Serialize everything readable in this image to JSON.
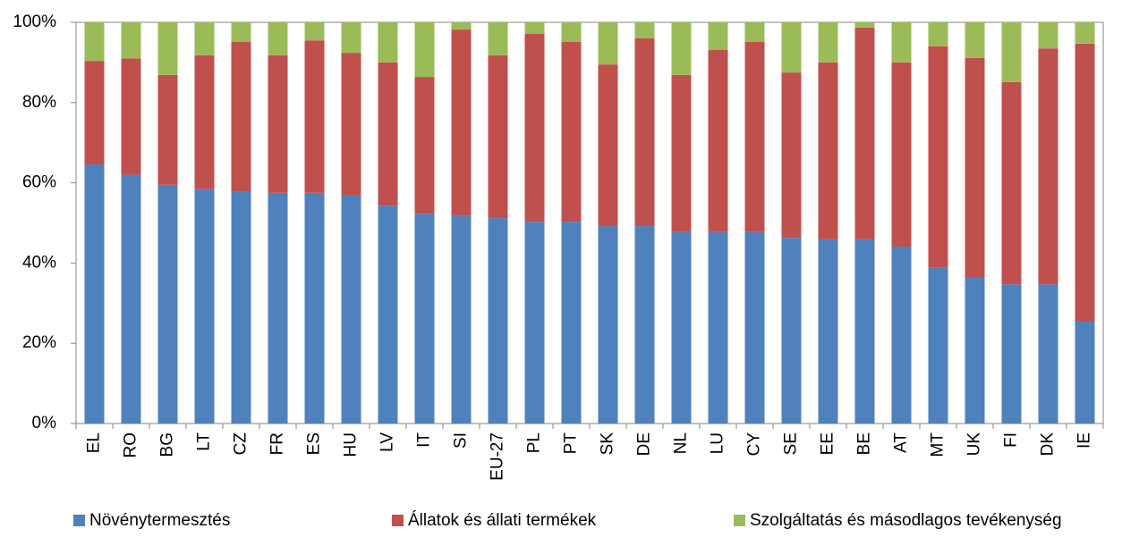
{
  "chart_data": {
    "type": "bar",
    "stacked": true,
    "categories": [
      "EL",
      "RO",
      "BG",
      "LT",
      "CZ",
      "FR",
      "ES",
      "HU",
      "LV",
      "IT",
      "SI",
      "EU-27",
      "PL",
      "PT",
      "SK",
      "DE",
      "NL",
      "LU",
      "CY",
      "SE",
      "EE",
      "BE",
      "AT",
      "MT",
      "UK",
      "FI",
      "DK",
      "IE"
    ],
    "series": [
      {
        "name": "Növénytermesztés",
        "color": "#4f81bd",
        "values": [
          64.6,
          62,
          59.5,
          58.4,
          57.9,
          57.5,
          57.5,
          56.8,
          54.3,
          52.3,
          51.7,
          51.2,
          50.3,
          50.3,
          49.2,
          49.2,
          47.7,
          47.7,
          47.7,
          46.3,
          45.9,
          45.9,
          44.1,
          38.8,
          36.3,
          34.7,
          34.7,
          25.4
        ]
      },
      {
        "name": "Állatok és állati termékek",
        "color": "#c0504d",
        "values": [
          25.8,
          29,
          27.4,
          33.4,
          37.2,
          34.3,
          38,
          35.6,
          35.7,
          34.1,
          46.5,
          40.6,
          46.8,
          44.8,
          40.3,
          46.8,
          39.2,
          45.4,
          47.4,
          41.2,
          44.1,
          52.8,
          45.9,
          55.2,
          54.8,
          50.4,
          58.8,
          69.3
        ]
      },
      {
        "name": "Szolgáltatás és másodlagos tevékenység",
        "color": "#9bbb59",
        "values": [
          9.6,
          9,
          13.1,
          8.2,
          4.9,
          8.2,
          4.5,
          7.6,
          10,
          13.6,
          1.8,
          8.2,
          2.9,
          4.9,
          10.5,
          4,
          13.1,
          6.9,
          4.9,
          12.5,
          10,
          1.3,
          10,
          6,
          8.9,
          14.9,
          6.5,
          5.3
        ]
      }
    ],
    "ylim": [
      0,
      100
    ],
    "yticks": [
      {
        "value": 0,
        "label": "0%"
      },
      {
        "value": 20,
        "label": "20%"
      },
      {
        "value": 40,
        "label": "40%"
      },
      {
        "value": 60,
        "label": "60%"
      },
      {
        "value": 80,
        "label": "80%"
      },
      {
        "value": 100,
        "label": "100%"
      }
    ],
    "legend": "bottom"
  }
}
